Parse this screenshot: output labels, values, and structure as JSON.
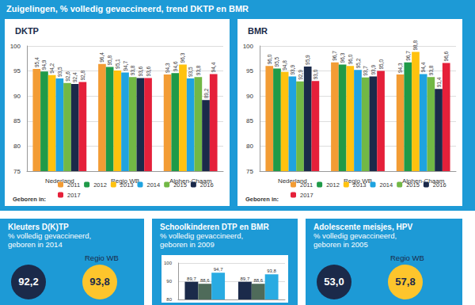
{
  "header": {
    "title": "Zuigelingen, % volledig gevaccineerd, trend DKTP en BMR"
  },
  "chart_data": [
    {
      "type": "bar",
      "title": "DKTP",
      "annotation": "Geboren in:",
      "categories": [
        "Nederland",
        "Regio WB",
        "Alphen-Chaam"
      ],
      "series": [
        {
          "name": "2011",
          "color": "#f39c34",
          "values": [
            95.4,
            96.4,
            94.3
          ],
          "value_labels": [
            "95,4",
            "96,4",
            "94,3"
          ]
        },
        {
          "name": "2012",
          "color": "#1f9a48",
          "values": [
            94.9,
            95.8,
            94.6
          ],
          "value_labels": [
            "94,9",
            "95,8",
            "94,6"
          ]
        },
        {
          "name": "2013",
          "color": "#ffc20e",
          "values": [
            94.2,
            95.1,
            96.3
          ],
          "value_labels": [
            "94,2",
            "95,1",
            "96,3"
          ]
        },
        {
          "name": "2014",
          "color": "#1fa3e0",
          "values": [
            93.5,
            94.7,
            93.5
          ],
          "value_labels": [
            "93,5",
            "94,7",
            "93,5"
          ]
        },
        {
          "name": "2015",
          "color": "#72b845",
          "values": [
            92.6,
            93.8,
            93.8
          ],
          "value_labels": [
            "92,6",
            "93,8",
            "93,8"
          ]
        },
        {
          "name": "2016",
          "color": "#1b2a4a",
          "values": [
            92.4,
            93.6,
            89.2
          ],
          "value_labels": [
            "92,4",
            "93,6",
            "89,2"
          ]
        },
        {
          "name": "2017",
          "color": "#e5203a",
          "values": [
            92.8,
            93.6,
            94.4
          ],
          "value_labels": [
            "92,8",
            "93,6",
            "94,4"
          ]
        }
      ],
      "ylim": [
        75,
        100
      ],
      "yticks": [
        75,
        80,
        85,
        90,
        95,
        100
      ],
      "grid": true,
      "legend": "bottom",
      "data_labels": true
    },
    {
      "type": "bar",
      "title": "BMR",
      "annotation": "Geboren in:",
      "categories": [
        "Nederland",
        "Regio WB",
        "Alphen-Chaam"
      ],
      "series": [
        {
          "name": "2011",
          "color": "#f39c34",
          "values": [
            96.0,
            96.7,
            94.3
          ],
          "value_labels": [
            "96,0",
            "96,7",
            "94,3"
          ]
        },
        {
          "name": "2012",
          "color": "#1f9a48",
          "values": [
            95.5,
            96.3,
            96.7
          ],
          "value_labels": [
            "95,5",
            "96,3",
            "96,7"
          ]
        },
        {
          "name": "2013",
          "color": "#ffc20e",
          "values": [
            94.8,
            96.0,
            98.8
          ],
          "value_labels": [
            "94,8",
            "96,0",
            "98,8"
          ]
        },
        {
          "name": "2014",
          "color": "#1fa3e0",
          "values": [
            93.9,
            95.2,
            94.4
          ],
          "value_labels": [
            "93,9",
            "95,2",
            "94,4"
          ]
        },
        {
          "name": "2015",
          "color": "#72b845",
          "values": [
            92.9,
            93.7,
            93.8
          ],
          "value_labels": [
            "92,9",
            "93,7",
            "93,8"
          ]
        },
        {
          "name": "2016",
          "color": "#1b2a4a",
          "values": [
            95.9,
            93.9,
            91.4
          ],
          "value_labels": [
            "95,9",
            "93,9",
            "91,4"
          ]
        },
        {
          "name": "2017",
          "color": "#e5203a",
          "values": [
            93.0,
            95.0,
            96.6
          ],
          "value_labels": [
            "93,0",
            "95,0",
            "96,6"
          ]
        }
      ],
      "ylim": [
        75,
        100
      ],
      "yticks": [
        75,
        80,
        85,
        90,
        95,
        100
      ],
      "grid": true,
      "legend": "bottom",
      "data_labels": true
    },
    {
      "type": "bar",
      "categories": [
        null,
        null
      ],
      "series": [
        {
          "color": "#1b2a4a",
          "values": [
            89.7,
            89.7
          ],
          "value_labels": [
            "89,7",
            "89,7"
          ]
        },
        {
          "color": "#4f6b5a",
          "values": [
            88.6,
            88.6
          ],
          "value_labels": [
            "88,6",
            "88,6"
          ]
        },
        {
          "color": "#29abe2",
          "values": [
            94.7,
            93.8
          ],
          "value_labels": [
            "94,7",
            "93,8"
          ]
        }
      ],
      "ylim": [
        80,
        100
      ],
      "yticks": [
        80,
        90,
        100
      ],
      "grid": true,
      "data_labels": true,
      "tick_labels": "y"
    }
  ],
  "panels": [
    {
      "title": "Kleuters D(K)TP",
      "lines": [
        "% volledig gevaccineerd,",
        "geboren in 2014"
      ],
      "values": [
        {
          "text": "92,2"
        },
        {
          "label": "Regio WB",
          "text": "93,8"
        }
      ]
    },
    {
      "title": "Schoolkinderen DTP en BMR",
      "lines": [
        "% volledig gevaccineerd,",
        "geboren in 2009"
      ]
    },
    {
      "title": "Adolescente meisjes, HPV",
      "lines": [
        "% volledig gevaccineerd,",
        "geboren in 2005"
      ],
      "values": [
        {
          "text": "53,0"
        },
        {
          "label": "Regio WB",
          "text": "57,8"
        }
      ]
    }
  ]
}
